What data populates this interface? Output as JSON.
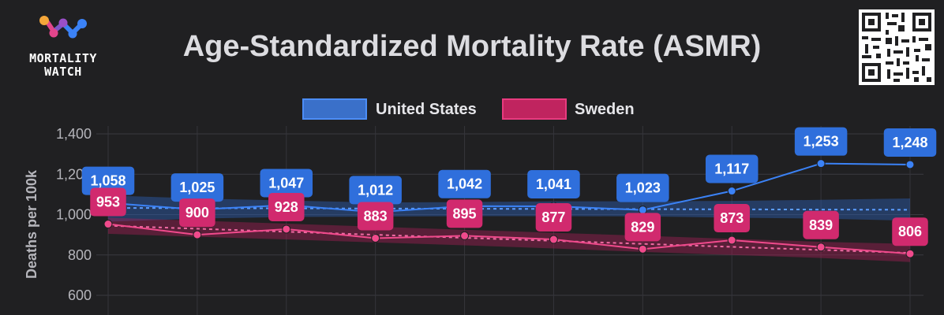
{
  "brand": {
    "line1": "MORTALITY",
    "line2": "WATCH"
  },
  "colors": {
    "us": "#3b82f6",
    "us_label": "#2f6fdc",
    "sweden": "#f04a8c",
    "sweden_label": "#d12a6e"
  },
  "chart_data": {
    "type": "line",
    "title": "Age-Standardized Mortality Rate (ASMR)",
    "xlabel": "",
    "ylabel": "Deaths per 100k",
    "ylim": [
      520,
      1400
    ],
    "yticks": [
      600,
      800,
      1000,
      1200,
      1400
    ],
    "ytick_labels": [
      "600",
      "800",
      "1,000",
      "1,200",
      "1,400"
    ],
    "legend": "top-center",
    "series": [
      {
        "name": "United States",
        "values": [
          1058,
          1025,
          1047,
          1012,
          1042,
          1041,
          1023,
          1117,
          1253,
          1248
        ],
        "labels": [
          "1,058",
          "1,025",
          "1,047",
          "1,012",
          "1,042",
          "1,041",
          "1,023",
          "1,117",
          "1,253",
          "1,248"
        ],
        "baseline": [
          1033,
          1032,
          1031,
          1030,
          1029,
          1028,
          1027,
          1026,
          1025,
          1024
        ],
        "band": [
          [
            965,
            1095
          ],
          [
            980,
            1080
          ],
          [
            988,
            1070
          ],
          [
            990,
            1060
          ],
          [
            992,
            1062
          ],
          [
            992,
            1066
          ],
          [
            991,
            1066
          ],
          [
            985,
            1068
          ],
          [
            980,
            1073
          ],
          [
            970,
            1080
          ]
        ]
      },
      {
        "name": "Sweden",
        "values": [
          953,
          900,
          928,
          883,
          895,
          877,
          829,
          873,
          839,
          806
        ],
        "labels": [
          "953",
          "900",
          "928",
          "883",
          "895",
          "877",
          "829",
          "873",
          "839",
          "806"
        ],
        "baseline": [
          945,
          930,
          915,
          900,
          885,
          870,
          855,
          840,
          825,
          810
        ],
        "band": [
          [
            905,
            985
          ],
          [
            890,
            970
          ],
          [
            877,
            955
          ],
          [
            862,
            940
          ],
          [
            848,
            925
          ],
          [
            832,
            910
          ],
          [
            815,
            895
          ],
          [
            800,
            880
          ],
          [
            785,
            865
          ],
          [
            765,
            855
          ]
        ]
      }
    ]
  }
}
